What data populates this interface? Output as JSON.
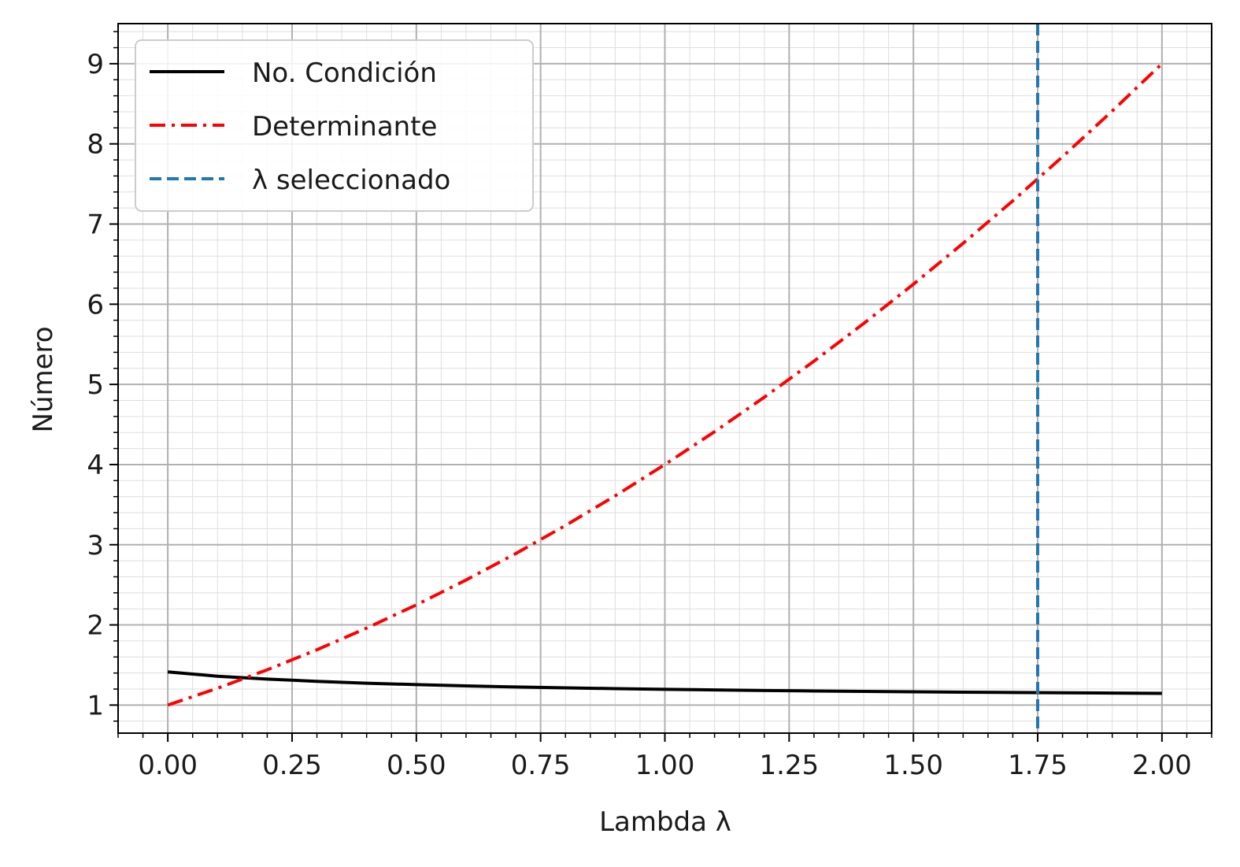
{
  "chart_data": {
    "type": "line",
    "xlabel": "Lambda λ",
    "ylabel": "Número",
    "xlim": [
      -0.1,
      2.1
    ],
    "ylim": [
      0.65,
      9.5
    ],
    "x_ticks": [
      0.0,
      0.25,
      0.5,
      0.75,
      1.0,
      1.25,
      1.5,
      1.75,
      2.0
    ],
    "x_tick_labels": [
      "0.00",
      "0.25",
      "0.50",
      "0.75",
      "1.00",
      "1.25",
      "1.50",
      "1.75",
      "2.00"
    ],
    "y_ticks": [
      1,
      2,
      3,
      4,
      5,
      6,
      7,
      8,
      9
    ],
    "y_tick_labels": [
      "1",
      "2",
      "3",
      "4",
      "5",
      "6",
      "7",
      "8",
      "9"
    ],
    "grid": true,
    "minor_grid": true,
    "legend": "top-left",
    "series": [
      {
        "name": "No. Condición",
        "style": "solid",
        "color": "#000000",
        "x": [
          0.0,
          0.1,
          0.2,
          0.3,
          0.4,
          0.5,
          0.6,
          0.7,
          0.8,
          0.9,
          1.0,
          1.1,
          1.2,
          1.3,
          1.4,
          1.5,
          1.6,
          1.7,
          1.8,
          1.9,
          2.0
        ],
        "y": [
          1.414,
          1.36,
          1.324,
          1.296,
          1.273,
          1.255,
          1.239,
          1.226,
          1.215,
          1.205,
          1.196,
          1.189,
          1.182,
          1.176,
          1.171,
          1.166,
          1.161,
          1.157,
          1.153,
          1.15,
          1.146
        ]
      },
      {
        "name": "Determinante",
        "style": "dashdot",
        "color": "#ff0000",
        "x": [
          0.0,
          0.1,
          0.2,
          0.3,
          0.4,
          0.5,
          0.6,
          0.7,
          0.8,
          0.9,
          1.0,
          1.1,
          1.2,
          1.3,
          1.4,
          1.5,
          1.6,
          1.7,
          1.8,
          1.9,
          2.0
        ],
        "y": [
          1.0,
          1.21,
          1.44,
          1.69,
          1.96,
          2.25,
          2.56,
          2.89,
          3.24,
          3.61,
          4.0,
          4.41,
          4.84,
          5.29,
          5.76,
          6.25,
          6.76,
          7.29,
          7.84,
          8.41,
          9.0
        ]
      }
    ],
    "vline": {
      "name": "λ seleccionado",
      "x": 1.75,
      "style": "dashed",
      "color": "#1f77b4"
    }
  }
}
